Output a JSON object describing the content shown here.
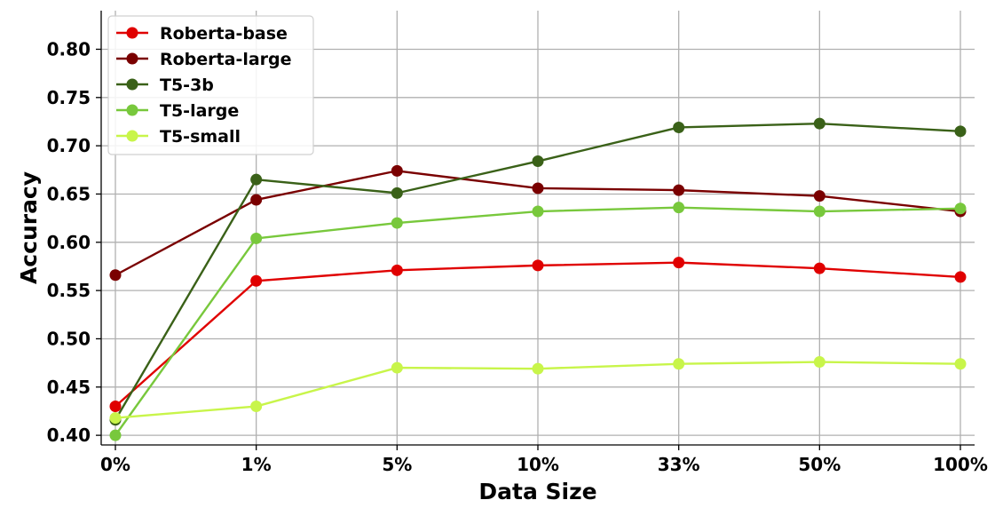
{
  "chart_data": {
    "type": "line",
    "title": "",
    "xlabel": "Data Size",
    "ylabel": "Accuracy",
    "categories": [
      "0%",
      "1%",
      "5%",
      "10%",
      "33%",
      "50%",
      "100%"
    ],
    "ylim": [
      0.39,
      0.84
    ],
    "yticks": [
      "0.40",
      "0.45",
      "0.50",
      "0.55",
      "0.60",
      "0.65",
      "0.70",
      "0.75",
      "0.80"
    ],
    "grid": true,
    "legend_position": "top-left",
    "series": [
      {
        "name": "Roberta-base",
        "color": "#e00000",
        "values": [
          0.43,
          0.56,
          0.571,
          0.576,
          0.579,
          0.573,
          0.564
        ]
      },
      {
        "name": "Roberta-large",
        "color": "#7a0000",
        "values": [
          0.566,
          0.644,
          0.674,
          0.656,
          0.654,
          0.648,
          0.632
        ]
      },
      {
        "name": "T5-3b",
        "color": "#3a6118",
        "values": [
          0.416,
          0.665,
          0.651,
          0.684,
          0.719,
          0.723,
          0.715
        ]
      },
      {
        "name": "T5-large",
        "color": "#78c83c",
        "values": [
          0.4,
          0.604,
          0.62,
          0.632,
          0.636,
          0.632,
          0.635
        ]
      },
      {
        "name": "T5-small",
        "color": "#c8f54a",
        "values": [
          0.418,
          0.43,
          0.47,
          0.469,
          0.474,
          0.476,
          0.474
        ]
      }
    ]
  }
}
